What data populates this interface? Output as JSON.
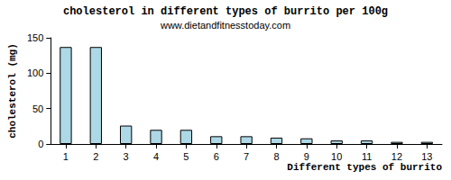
{
  "chart_data": {
    "type": "bar",
    "title": "cholesterol in different types of burrito per 100g",
    "subtitle": "www.dietandfitnesstoday.com",
    "x_label": "Different types of burrito",
    "y_label": "cholesterol (mg)",
    "categories": [
      "1",
      "2",
      "3",
      "4",
      "5",
      "6",
      "7",
      "8",
      "9",
      "10",
      "11",
      "12",
      "13"
    ],
    "values": [
      137,
      137,
      26,
      20,
      20,
      11,
      11,
      9,
      8,
      5,
      5,
      3,
      3
    ],
    "color": "#add8e6",
    "ylim": [
      0,
      150
    ],
    "yticks": [
      0,
      50,
      100,
      150
    ],
    "grid": false
  }
}
